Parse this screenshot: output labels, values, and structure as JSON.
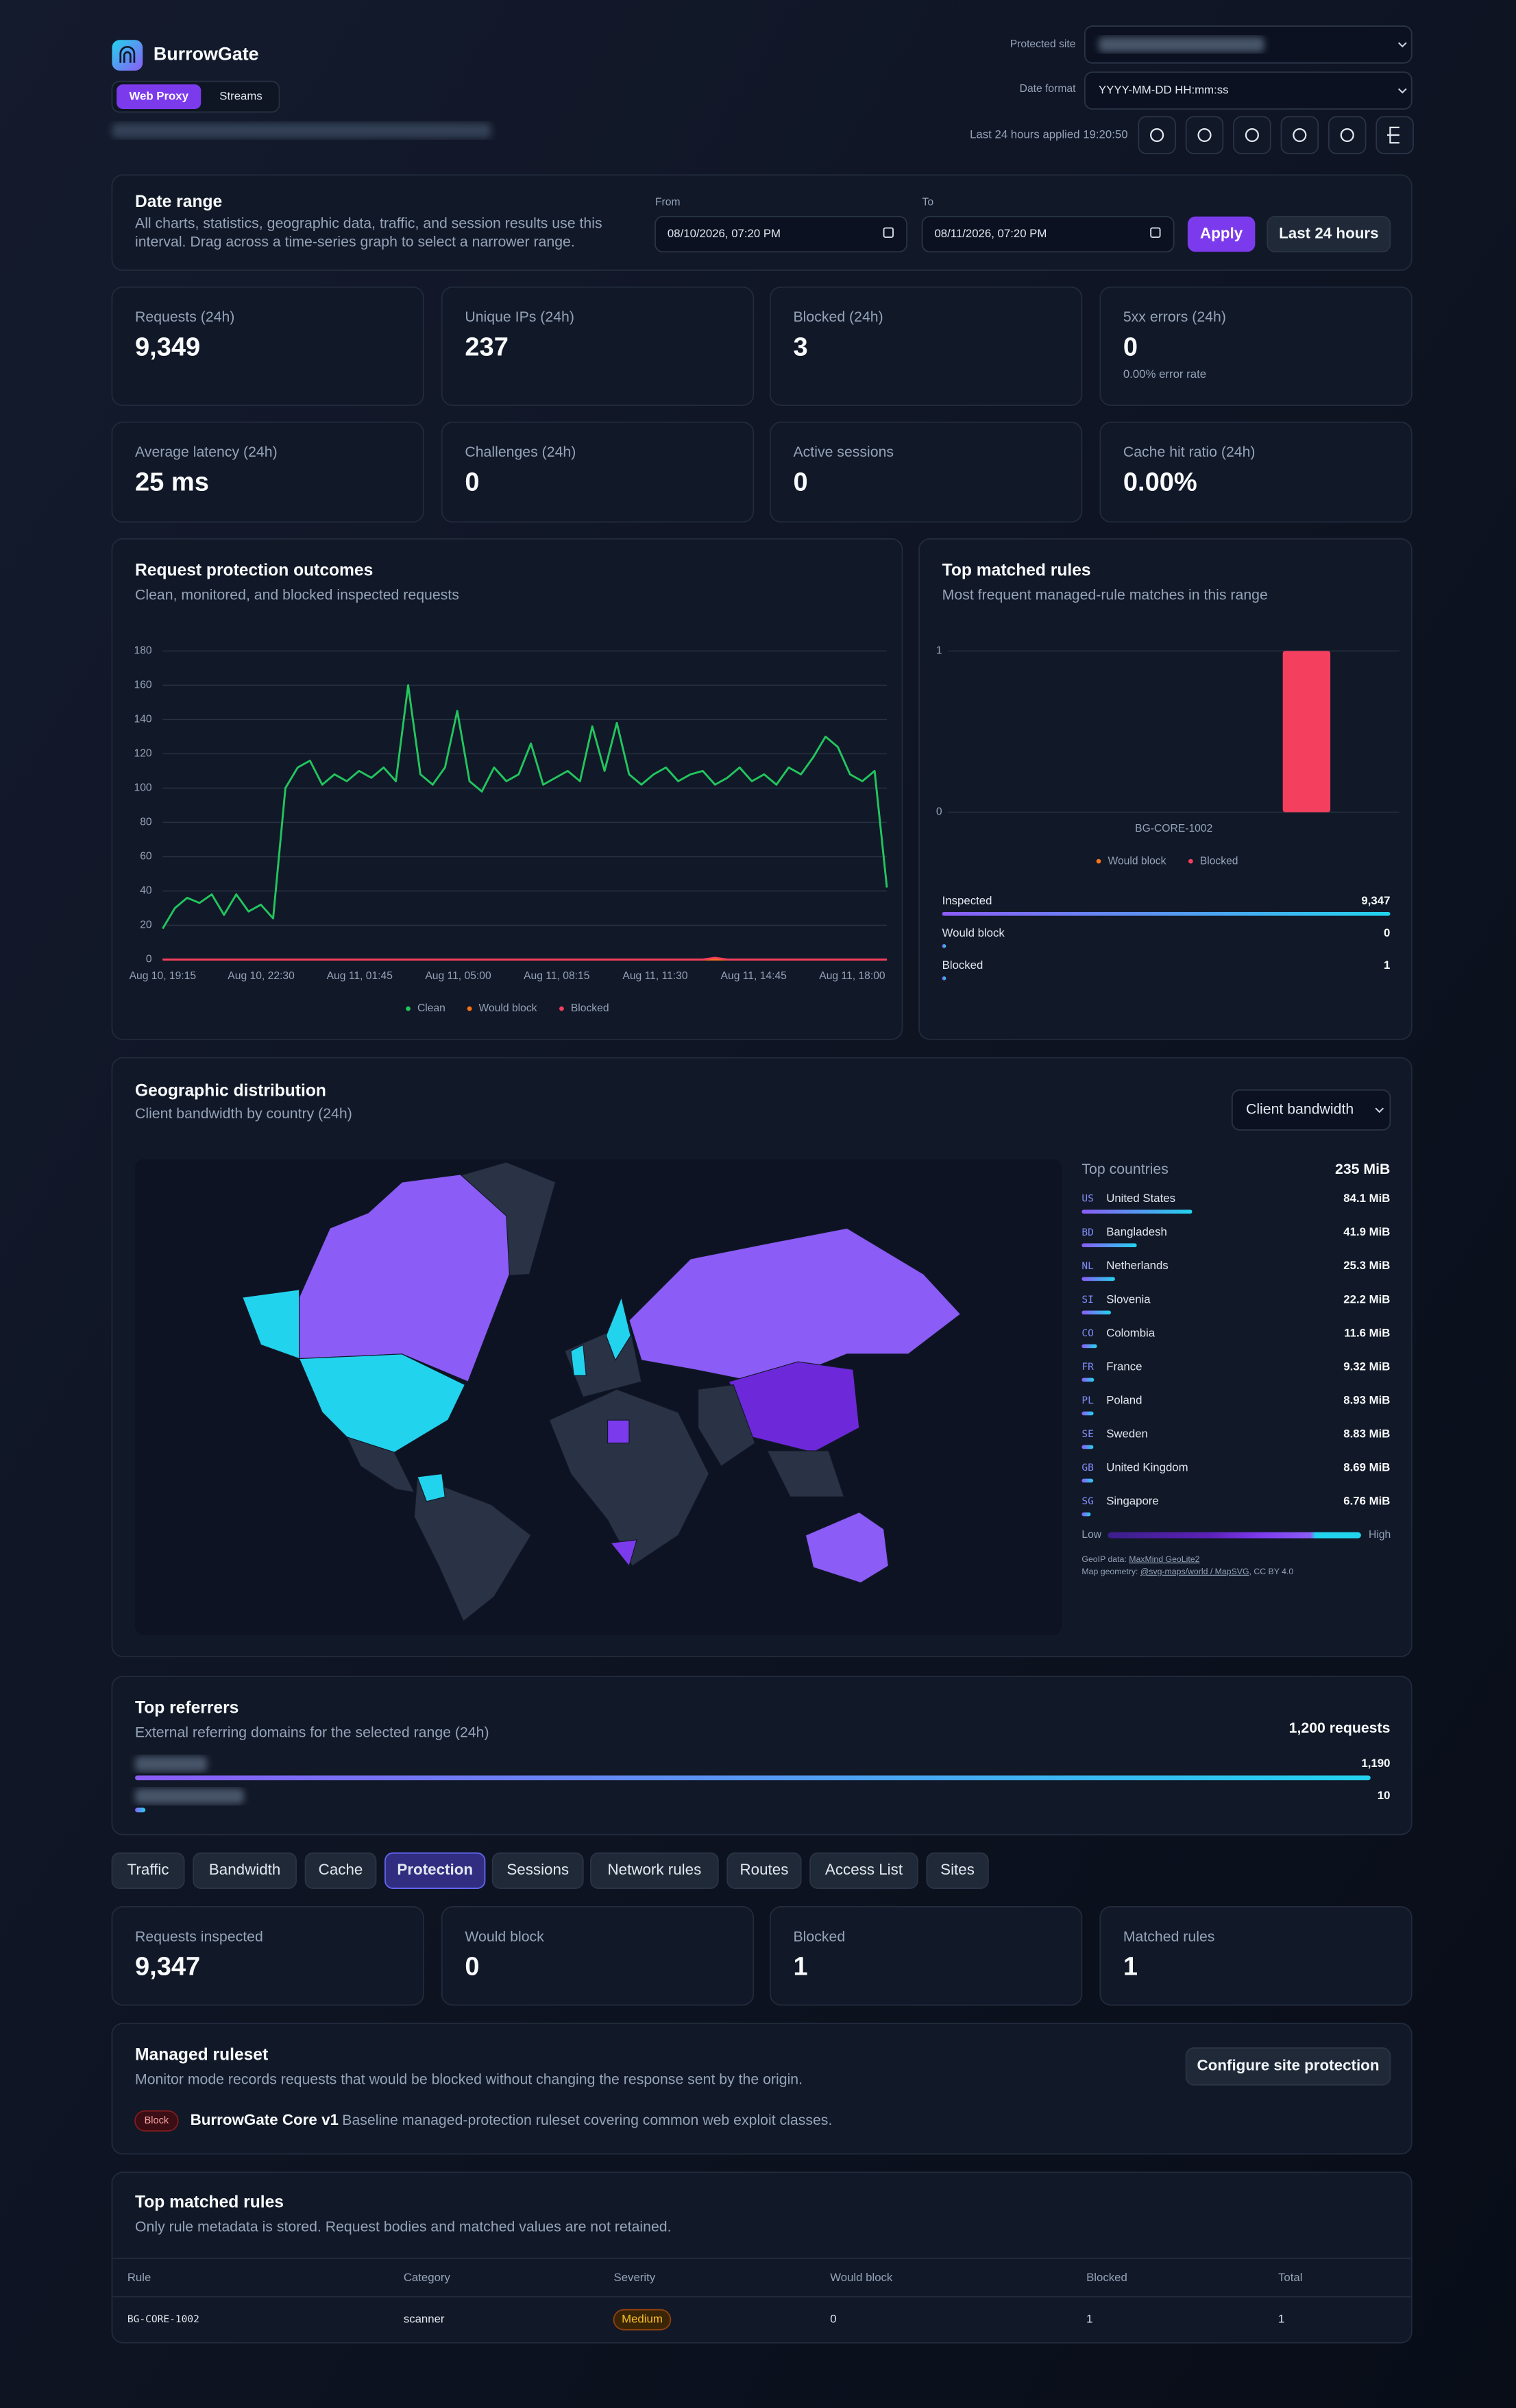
{
  "header": {
    "brand": "BurrowGate",
    "modes": [
      "Web Proxy",
      "Streams"
    ],
    "protected_site_label": "Protected site",
    "date_format_label": "Date format",
    "date_format": "YYYY-MM-DD HH:mm:ss",
    "applied": "Last 24 hours applied 19:20:50"
  },
  "date_range": {
    "title": "Date range",
    "description": [
      "All charts, statistics, geographic data, traffic, and session results use this",
      "interval. Drag across a time-series graph to select a narrower range."
    ],
    "from_label": "From",
    "from": "08/10/2026, 07:20 PM",
    "to_label": "To",
    "to": "08/11/2026, 07:20 PM",
    "apply": "Apply",
    "reset": "Last 24 hours"
  },
  "stats": [
    {
      "label": "Requests (24h)",
      "value": "9,349"
    },
    {
      "label": "Unique IPs (24h)",
      "value": "237"
    },
    {
      "label": "Blocked (24h)",
      "value": "3"
    },
    {
      "label": "5xx errors (24h)",
      "value": "0",
      "note": "0.00% error rate"
    },
    {
      "label": "Average latency (24h)",
      "value": "25 ms"
    },
    {
      "label": "Challenges (24h)",
      "value": "0"
    },
    {
      "label": "Active sessions",
      "value": "0"
    },
    {
      "label": "Cache hit ratio (24h)",
      "value": "0.00%"
    }
  ],
  "chart_data": [
    {
      "type": "line",
      "title": "Request protection outcomes",
      "subtitle": "Clean, monitored, and blocked inspected requests",
      "xticks": [
        "Aug 10, 19:15",
        "Aug 10, 22:30",
        "Aug 11, 01:45",
        "Aug 11, 05:00",
        "Aug 11, 08:15",
        "Aug 11, 11:30",
        "Aug 11, 14:45",
        "Aug 11, 18:00"
      ],
      "ylim": [
        0,
        180
      ],
      "yticks": [
        0,
        20,
        40,
        60,
        80,
        100,
        120,
        140,
        160,
        180
      ],
      "grid": true,
      "series": [
        {
          "name": "Clean",
          "color": "#22c55e",
          "values": [
            18,
            30,
            36,
            33,
            38,
            26,
            38,
            28,
            32,
            24,
            100,
            112,
            116,
            102,
            108,
            104,
            110,
            106,
            112,
            104,
            160,
            108,
            102,
            112,
            145,
            104,
            98,
            112,
            104,
            108,
            126,
            102,
            106,
            110,
            104,
            136,
            110,
            138,
            108,
            102,
            108,
            112,
            104,
            108,
            110,
            102,
            106,
            112,
            104,
            108,
            102,
            112,
            108,
            118,
            130,
            124,
            108,
            104,
            110,
            42
          ]
        },
        {
          "name": "Would block",
          "color": "#f97316",
          "values": [
            0,
            0,
            0,
            0,
            0,
            0,
            0,
            0,
            0,
            0,
            0,
            0,
            0,
            0,
            0,
            0,
            0,
            0,
            0,
            0,
            0,
            0,
            0,
            0,
            0,
            0,
            0,
            0,
            0,
            0,
            0,
            0,
            0,
            0,
            0,
            0,
            0,
            0,
            0,
            0,
            0,
            0,
            0,
            0,
            0,
            0,
            0,
            0,
            0,
            0,
            0,
            0,
            0,
            0,
            0,
            0,
            0,
            0,
            0,
            0
          ]
        },
        {
          "name": "Blocked",
          "color": "#f43f5e",
          "values": [
            0,
            0,
            0,
            0,
            0,
            0,
            0,
            0,
            0,
            0,
            0,
            0,
            0,
            0,
            0,
            0,
            0,
            0,
            0,
            0,
            0,
            0,
            0,
            0,
            0,
            0,
            0,
            0,
            0,
            0,
            0,
            0,
            0,
            0,
            0,
            0,
            0,
            0,
            0,
            0,
            0,
            0,
            0,
            0,
            0,
            1,
            0,
            0,
            0,
            0,
            0,
            0,
            0,
            0,
            0,
            0,
            0,
            0,
            0,
            0
          ]
        }
      ]
    },
    {
      "type": "bar",
      "title": "Top matched rules",
      "subtitle": "Most frequent managed-rule matches in this range",
      "categories": [
        "BG-CORE-1002"
      ],
      "ylim": [
        0,
        1
      ],
      "yticks": [
        0,
        1
      ],
      "grid": true,
      "series": [
        {
          "name": "Would block",
          "color": "#f97316",
          "values": [
            0
          ]
        },
        {
          "name": "Blocked",
          "color": "#f43f5e",
          "values": [
            1
          ]
        }
      ]
    }
  ],
  "rule_bars": [
    {
      "label": "Inspected",
      "value": 9347,
      "value_label": "9,347"
    },
    {
      "label": "Would block",
      "value": 0
    },
    {
      "label": "Blocked",
      "value": 1
    }
  ],
  "geo": {
    "title": "Geographic distribution",
    "subtitle": "Client bandwidth by country (24h)",
    "metric": "Client bandwidth",
    "list_title": "Top countries",
    "total": {
      "value": 235,
      "label": "235 MiB"
    },
    "countries": [
      {
        "code": "US",
        "name": "United States",
        "value": 84.1,
        "label": "84.1 MiB"
      },
      {
        "code": "BD",
        "name": "Bangladesh",
        "value": 41.9,
        "label": "41.9 MiB"
      },
      {
        "code": "NL",
        "name": "Netherlands",
        "value": 25.3,
        "label": "25.3 MiB"
      },
      {
        "code": "SI",
        "name": "Slovenia",
        "value": 22.2,
        "label": "22.2 MiB"
      },
      {
        "code": "CO",
        "name": "Colombia",
        "value": 11.6,
        "label": "11.6 MiB"
      },
      {
        "code": "FR",
        "name": "France",
        "value": 9.32,
        "label": "9.32 MiB"
      },
      {
        "code": "PL",
        "name": "Poland",
        "value": 8.93,
        "label": "8.93 MiB"
      },
      {
        "code": "SE",
        "name": "Sweden",
        "value": 8.83,
        "label": "8.83 MiB"
      },
      {
        "code": "GB",
        "name": "United Kingdom",
        "value": 8.69,
        "label": "8.69 MiB"
      },
      {
        "code": "SG",
        "name": "Singapore",
        "value": 6.76,
        "label": "6.76 MiB"
      }
    ],
    "low": "Low",
    "high": "High",
    "credit_geoip": "GeoIP data: ",
    "credit_geoip_link": "MaxMind GeoLite2",
    "credit_map": "Map geometry: ",
    "credit_map_link": "@svg-maps/world / MapSVG",
    "credit_map_license": ", CC BY 4.0"
  },
  "referrers": {
    "title": "Top referrers",
    "subtitle": "External referring domains for the selected range (24h)",
    "total": {
      "value": 1200,
      "label": "1,200 requests"
    },
    "items": [
      {
        "value": 1190,
        "label": "1,190"
      },
      {
        "value": 10,
        "label": "10"
      }
    ]
  },
  "tabs": [
    "Traffic",
    "Bandwidth",
    "Cache",
    "Protection",
    "Sessions",
    "Network rules",
    "Routes",
    "Access List",
    "Sites"
  ],
  "active_tab": 3,
  "protection_stats": [
    {
      "label": "Requests inspected",
      "value": "9,347"
    },
    {
      "label": "Would block",
      "value": "0"
    },
    {
      "label": "Blocked",
      "value": "1"
    },
    {
      "label": "Matched rules",
      "value": "1"
    }
  ],
  "ruleset": {
    "title": "Managed ruleset",
    "description": "Monitor mode records requests that would be blocked without changing the response sent by the origin.",
    "button": "Configure site protection",
    "mode": "Block",
    "name": "BurrowGate Core v1",
    "summary": "Baseline managed-protection ruleset covering common web exploit classes."
  },
  "matched_rules_table": {
    "title": "Top matched rules",
    "subtitle": "Only rule metadata is stored. Request bodies and matched values are not retained.",
    "columns": [
      "Rule",
      "Category",
      "Severity",
      "Would block",
      "Blocked",
      "Total"
    ],
    "rows": [
      [
        "BG-CORE-1002",
        "scanner",
        "Medium",
        "0",
        "1",
        "1"
      ]
    ]
  }
}
